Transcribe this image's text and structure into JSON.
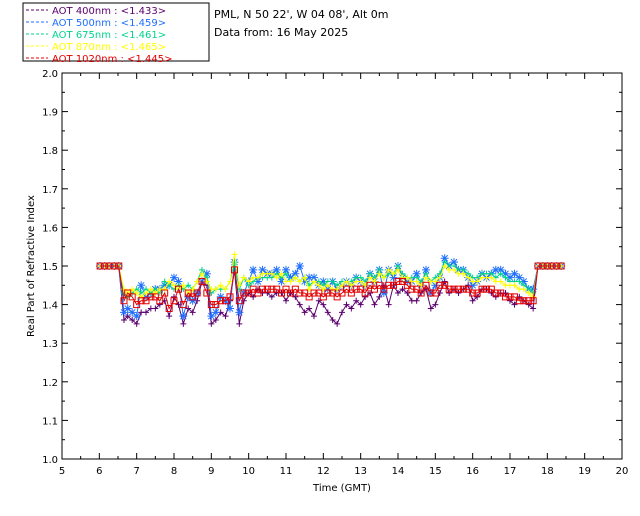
{
  "chart_data": {
    "type": "line",
    "site_line": "PML, N 50 22', W 04 08', Alt 0m",
    "date_line": "Data from: 16 May 2025",
    "xlabel": "Time (GMT)",
    "ylabel": "Real Part of Refractive Index",
    "xlim": [
      5,
      20
    ],
    "ylim": [
      1.0,
      2.0
    ],
    "x_ticks": [
      "5",
      "6",
      "7",
      "8",
      "9",
      "10",
      "11",
      "12",
      "13",
      "14",
      "15",
      "16",
      "17",
      "18",
      "19",
      "20"
    ],
    "y_ticks": [
      "1.0",
      "1.1",
      "1.2",
      "1.3",
      "1.4",
      "1.5",
      "1.6",
      "1.7",
      "1.8",
      "1.9",
      "2.0"
    ],
    "grid": false,
    "legend_position": "top-left, outside plot",
    "legend_labels": [
      "AOT  400nm : <1.433>",
      "AOT  500nm : <1.459>",
      "AOT  675nm : <1.461>",
      "AOT  870nm : <1.465>",
      "AOT 1020nm : <1.445>"
    ],
    "x": [
      6.02,
      6.14,
      6.26,
      6.4,
      6.52,
      6.66,
      6.76,
      6.88,
      7.0,
      7.12,
      7.25,
      7.38,
      7.5,
      7.62,
      7.75,
      7.87,
      8.0,
      8.12,
      8.25,
      8.38,
      8.5,
      8.62,
      8.75,
      8.88,
      9.0,
      9.12,
      9.25,
      9.38,
      9.5,
      9.62,
      9.75,
      9.87,
      10.0,
      10.12,
      10.25,
      10.37,
      10.5,
      10.62,
      10.75,
      10.88,
      11.0,
      11.12,
      11.25,
      11.37,
      11.5,
      11.62,
      11.75,
      11.88,
      12.0,
      12.12,
      12.25,
      12.37,
      12.5,
      12.62,
      12.75,
      12.88,
      13.0,
      13.12,
      13.25,
      13.37,
      13.5,
      13.62,
      13.75,
      13.88,
      14.0,
      14.12,
      14.25,
      14.37,
      14.5,
      14.62,
      14.75,
      14.88,
      15.0,
      15.12,
      15.25,
      15.37,
      15.5,
      15.62,
      15.75,
      15.88,
      16.0,
      16.12,
      16.25,
      16.37,
      16.5,
      16.62,
      16.75,
      16.88,
      17.0,
      17.12,
      17.25,
      17.37,
      17.5,
      17.62,
      17.75,
      17.88,
      18.0,
      18.12,
      18.25,
      18.37
    ],
    "series": [
      {
        "name": "AOT  400nm",
        "color": "#5a006e",
        "marker": "plus",
        "values": [
          1.5,
          1.5,
          1.5,
          1.5,
          1.5,
          1.36,
          1.37,
          1.36,
          1.35,
          1.38,
          1.38,
          1.39,
          1.39,
          1.4,
          1.41,
          1.37,
          1.42,
          1.4,
          1.35,
          1.39,
          1.38,
          1.41,
          1.46,
          1.45,
          1.35,
          1.36,
          1.38,
          1.37,
          1.41,
          1.49,
          1.35,
          1.41,
          1.43,
          1.42,
          1.44,
          1.43,
          1.43,
          1.42,
          1.43,
          1.43,
          1.41,
          1.43,
          1.42,
          1.4,
          1.38,
          1.39,
          1.37,
          1.41,
          1.4,
          1.38,
          1.36,
          1.35,
          1.38,
          1.4,
          1.39,
          1.41,
          1.4,
          1.42,
          1.43,
          1.4,
          1.42,
          1.45,
          1.4,
          1.45,
          1.43,
          1.44,
          1.43,
          1.41,
          1.41,
          1.43,
          1.44,
          1.39,
          1.4,
          1.43,
          1.46,
          1.43,
          1.44,
          1.43,
          1.44,
          1.45,
          1.41,
          1.42,
          1.44,
          1.44,
          1.43,
          1.42,
          1.43,
          1.43,
          1.41,
          1.4,
          1.42,
          1.41,
          1.4,
          1.39,
          1.5,
          1.5,
          1.5,
          1.5,
          1.5,
          1.5
        ]
      },
      {
        "name": "AOT  500nm",
        "color": "#1f6fff",
        "marker": "star",
        "values": [
          1.5,
          1.5,
          1.5,
          1.5,
          1.5,
          1.38,
          1.39,
          1.38,
          1.37,
          1.45,
          1.42,
          1.43,
          1.44,
          1.44,
          1.45,
          1.45,
          1.47,
          1.46,
          1.37,
          1.42,
          1.41,
          1.43,
          1.46,
          1.48,
          1.37,
          1.38,
          1.42,
          1.41,
          1.39,
          1.51,
          1.38,
          1.43,
          1.46,
          1.49,
          1.46,
          1.49,
          1.48,
          1.48,
          1.49,
          1.46,
          1.49,
          1.47,
          1.48,
          1.5,
          1.46,
          1.47,
          1.47,
          1.45,
          1.46,
          1.44,
          1.46,
          1.44,
          1.45,
          1.46,
          1.45,
          1.47,
          1.46,
          1.45,
          1.48,
          1.46,
          1.49,
          1.43,
          1.49,
          1.47,
          1.5,
          1.47,
          1.46,
          1.46,
          1.48,
          1.45,
          1.49,
          1.43,
          1.45,
          1.47,
          1.52,
          1.5,
          1.51,
          1.49,
          1.49,
          1.47,
          1.45,
          1.46,
          1.48,
          1.47,
          1.48,
          1.49,
          1.49,
          1.48,
          1.47,
          1.48,
          1.47,
          1.46,
          1.44,
          1.44,
          1.5,
          1.5,
          1.5,
          1.5,
          1.5,
          1.5
        ]
      },
      {
        "name": "AOT  675nm",
        "color": "#00d48c",
        "marker": "plus",
        "values": [
          1.5,
          1.5,
          1.5,
          1.5,
          1.5,
          1.43,
          1.42,
          1.43,
          1.44,
          1.43,
          1.44,
          1.43,
          1.44,
          1.43,
          1.46,
          1.45,
          1.44,
          1.45,
          1.44,
          1.45,
          1.44,
          1.46,
          1.49,
          1.47,
          1.43,
          1.44,
          1.44,
          1.44,
          1.46,
          1.51,
          1.44,
          1.47,
          1.45,
          1.46,
          1.47,
          1.47,
          1.47,
          1.47,
          1.48,
          1.47,
          1.48,
          1.46,
          1.47,
          1.46,
          1.47,
          1.45,
          1.46,
          1.46,
          1.45,
          1.46,
          1.46,
          1.45,
          1.46,
          1.46,
          1.46,
          1.47,
          1.47,
          1.46,
          1.48,
          1.47,
          1.49,
          1.47,
          1.48,
          1.48,
          1.5,
          1.48,
          1.47,
          1.47,
          1.47,
          1.46,
          1.48,
          1.46,
          1.47,
          1.48,
          1.51,
          1.5,
          1.5,
          1.49,
          1.49,
          1.48,
          1.47,
          1.47,
          1.48,
          1.48,
          1.48,
          1.47,
          1.48,
          1.47,
          1.46,
          1.46,
          1.46,
          1.45,
          1.44,
          1.43,
          1.5,
          1.5,
          1.5,
          1.5,
          1.5,
          1.5
        ]
      },
      {
        "name": "AOT  870nm",
        "color": "#ffff00",
        "marker": "plus",
        "values": [
          1.5,
          1.5,
          1.5,
          1.5,
          1.5,
          1.44,
          1.43,
          1.44,
          1.43,
          1.42,
          1.43,
          1.44,
          1.43,
          1.44,
          1.44,
          1.46,
          1.45,
          1.44,
          1.45,
          1.43,
          1.44,
          1.46,
          1.48,
          1.46,
          1.44,
          1.44,
          1.45,
          1.44,
          1.46,
          1.53,
          1.45,
          1.47,
          1.46,
          1.47,
          1.47,
          1.48,
          1.48,
          1.48,
          1.47,
          1.48,
          1.46,
          1.46,
          1.47,
          1.46,
          1.47,
          1.44,
          1.46,
          1.45,
          1.44,
          1.45,
          1.44,
          1.44,
          1.45,
          1.46,
          1.45,
          1.46,
          1.46,
          1.45,
          1.47,
          1.46,
          1.48,
          1.47,
          1.49,
          1.48,
          1.49,
          1.47,
          1.47,
          1.46,
          1.46,
          1.45,
          1.47,
          1.46,
          1.46,
          1.47,
          1.5,
          1.49,
          1.49,
          1.48,
          1.48,
          1.47,
          1.46,
          1.46,
          1.47,
          1.47,
          1.47,
          1.46,
          1.46,
          1.45,
          1.45,
          1.45,
          1.44,
          1.44,
          1.43,
          1.42,
          1.5,
          1.5,
          1.5,
          1.5,
          1.5,
          1.5
        ]
      },
      {
        "name": "AOT 1020nm",
        "color": "#e40000",
        "marker": "square",
        "values": [
          1.5,
          1.5,
          1.5,
          1.5,
          1.5,
          1.41,
          1.43,
          1.42,
          1.4,
          1.41,
          1.41,
          1.42,
          1.42,
          1.41,
          1.43,
          1.39,
          1.41,
          1.44,
          1.4,
          1.43,
          1.42,
          1.43,
          1.46,
          1.43,
          1.4,
          1.4,
          1.41,
          1.41,
          1.42,
          1.49,
          1.41,
          1.43,
          1.43,
          1.44,
          1.43,
          1.44,
          1.44,
          1.44,
          1.44,
          1.43,
          1.44,
          1.43,
          1.44,
          1.43,
          1.43,
          1.42,
          1.43,
          1.43,
          1.42,
          1.43,
          1.43,
          1.42,
          1.43,
          1.44,
          1.43,
          1.44,
          1.44,
          1.43,
          1.45,
          1.44,
          1.45,
          1.44,
          1.45,
          1.45,
          1.46,
          1.46,
          1.45,
          1.44,
          1.44,
          1.43,
          1.45,
          1.43,
          1.43,
          1.45,
          1.45,
          1.44,
          1.44,
          1.44,
          1.44,
          1.44,
          1.43,
          1.43,
          1.44,
          1.44,
          1.44,
          1.43,
          1.43,
          1.42,
          1.42,
          1.42,
          1.41,
          1.41,
          1.41,
          1.41,
          1.5,
          1.5,
          1.5,
          1.5,
          1.5,
          1.5
        ]
      }
    ]
  }
}
